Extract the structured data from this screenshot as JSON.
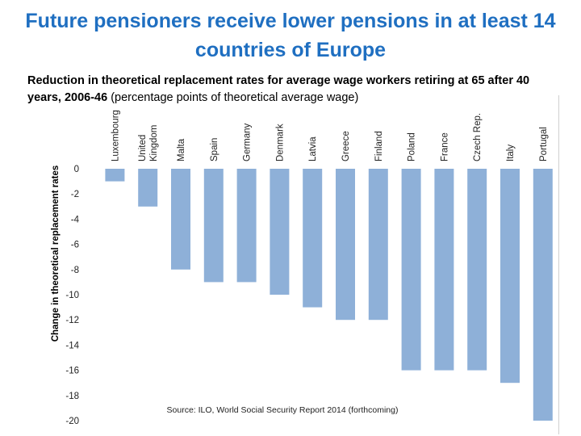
{
  "page": {
    "title": "Future pensioners receive lower pensions in at least 14 countries of Europe",
    "subtitle_bold": "Reduction in theoretical replacement rates for average wage workers retiring at 65 after 40 years, 2006-46",
    "subtitle_normal": "(percentage points of theoretical average wage)"
  },
  "chart_data": {
    "type": "bar",
    "categories": [
      "Luxembourg",
      "United Kingdom",
      "Malta",
      "Spain",
      "Germany",
      "Denmark",
      "Latvia",
      "Greece",
      "Finland",
      "Poland",
      "France",
      "Czech Rep.",
      "Italy",
      "Portugal"
    ],
    "category_lines": [
      [
        "Luxembourg"
      ],
      [
        "United",
        "Kingdom"
      ],
      [
        "Malta"
      ],
      [
        "Spain"
      ],
      [
        "Germany"
      ],
      [
        "Denmark"
      ],
      [
        "Latvia"
      ],
      [
        "Greece"
      ],
      [
        "Finland"
      ],
      [
        "Poland"
      ],
      [
        "France"
      ],
      [
        "Czech Rep."
      ],
      [
        "Italy"
      ],
      [
        "Portugal"
      ]
    ],
    "values": [
      -1,
      -3,
      -8,
      -9,
      -9,
      -10,
      -11,
      -12,
      -12,
      -16,
      -16,
      -16,
      -17,
      -20
    ],
    "ylabel": "Change in theoretical replacement rates",
    "ylim": [
      -20,
      0
    ],
    "yticks": [
      0,
      -2,
      -4,
      -6,
      -8,
      -10,
      -12,
      -14,
      -16,
      -18,
      -20
    ],
    "bar_color": "#8eb0d8",
    "grid": false,
    "source": "Source: ILO, World Social Security Report 2014 (forthcoming)"
  }
}
